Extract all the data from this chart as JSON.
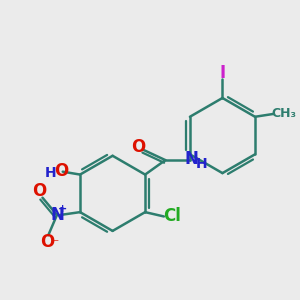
{
  "bg_color": "#ebebeb",
  "bond_color": "#2d7d6e",
  "bond_width": 1.8,
  "atom_colors": {
    "O": "#dd1100",
    "N": "#2222cc",
    "Cl": "#22aa22",
    "I": "#cc22cc",
    "H": "#2222cc"
  },
  "figsize": [
    3.0,
    3.0
  ],
  "dpi": 100
}
